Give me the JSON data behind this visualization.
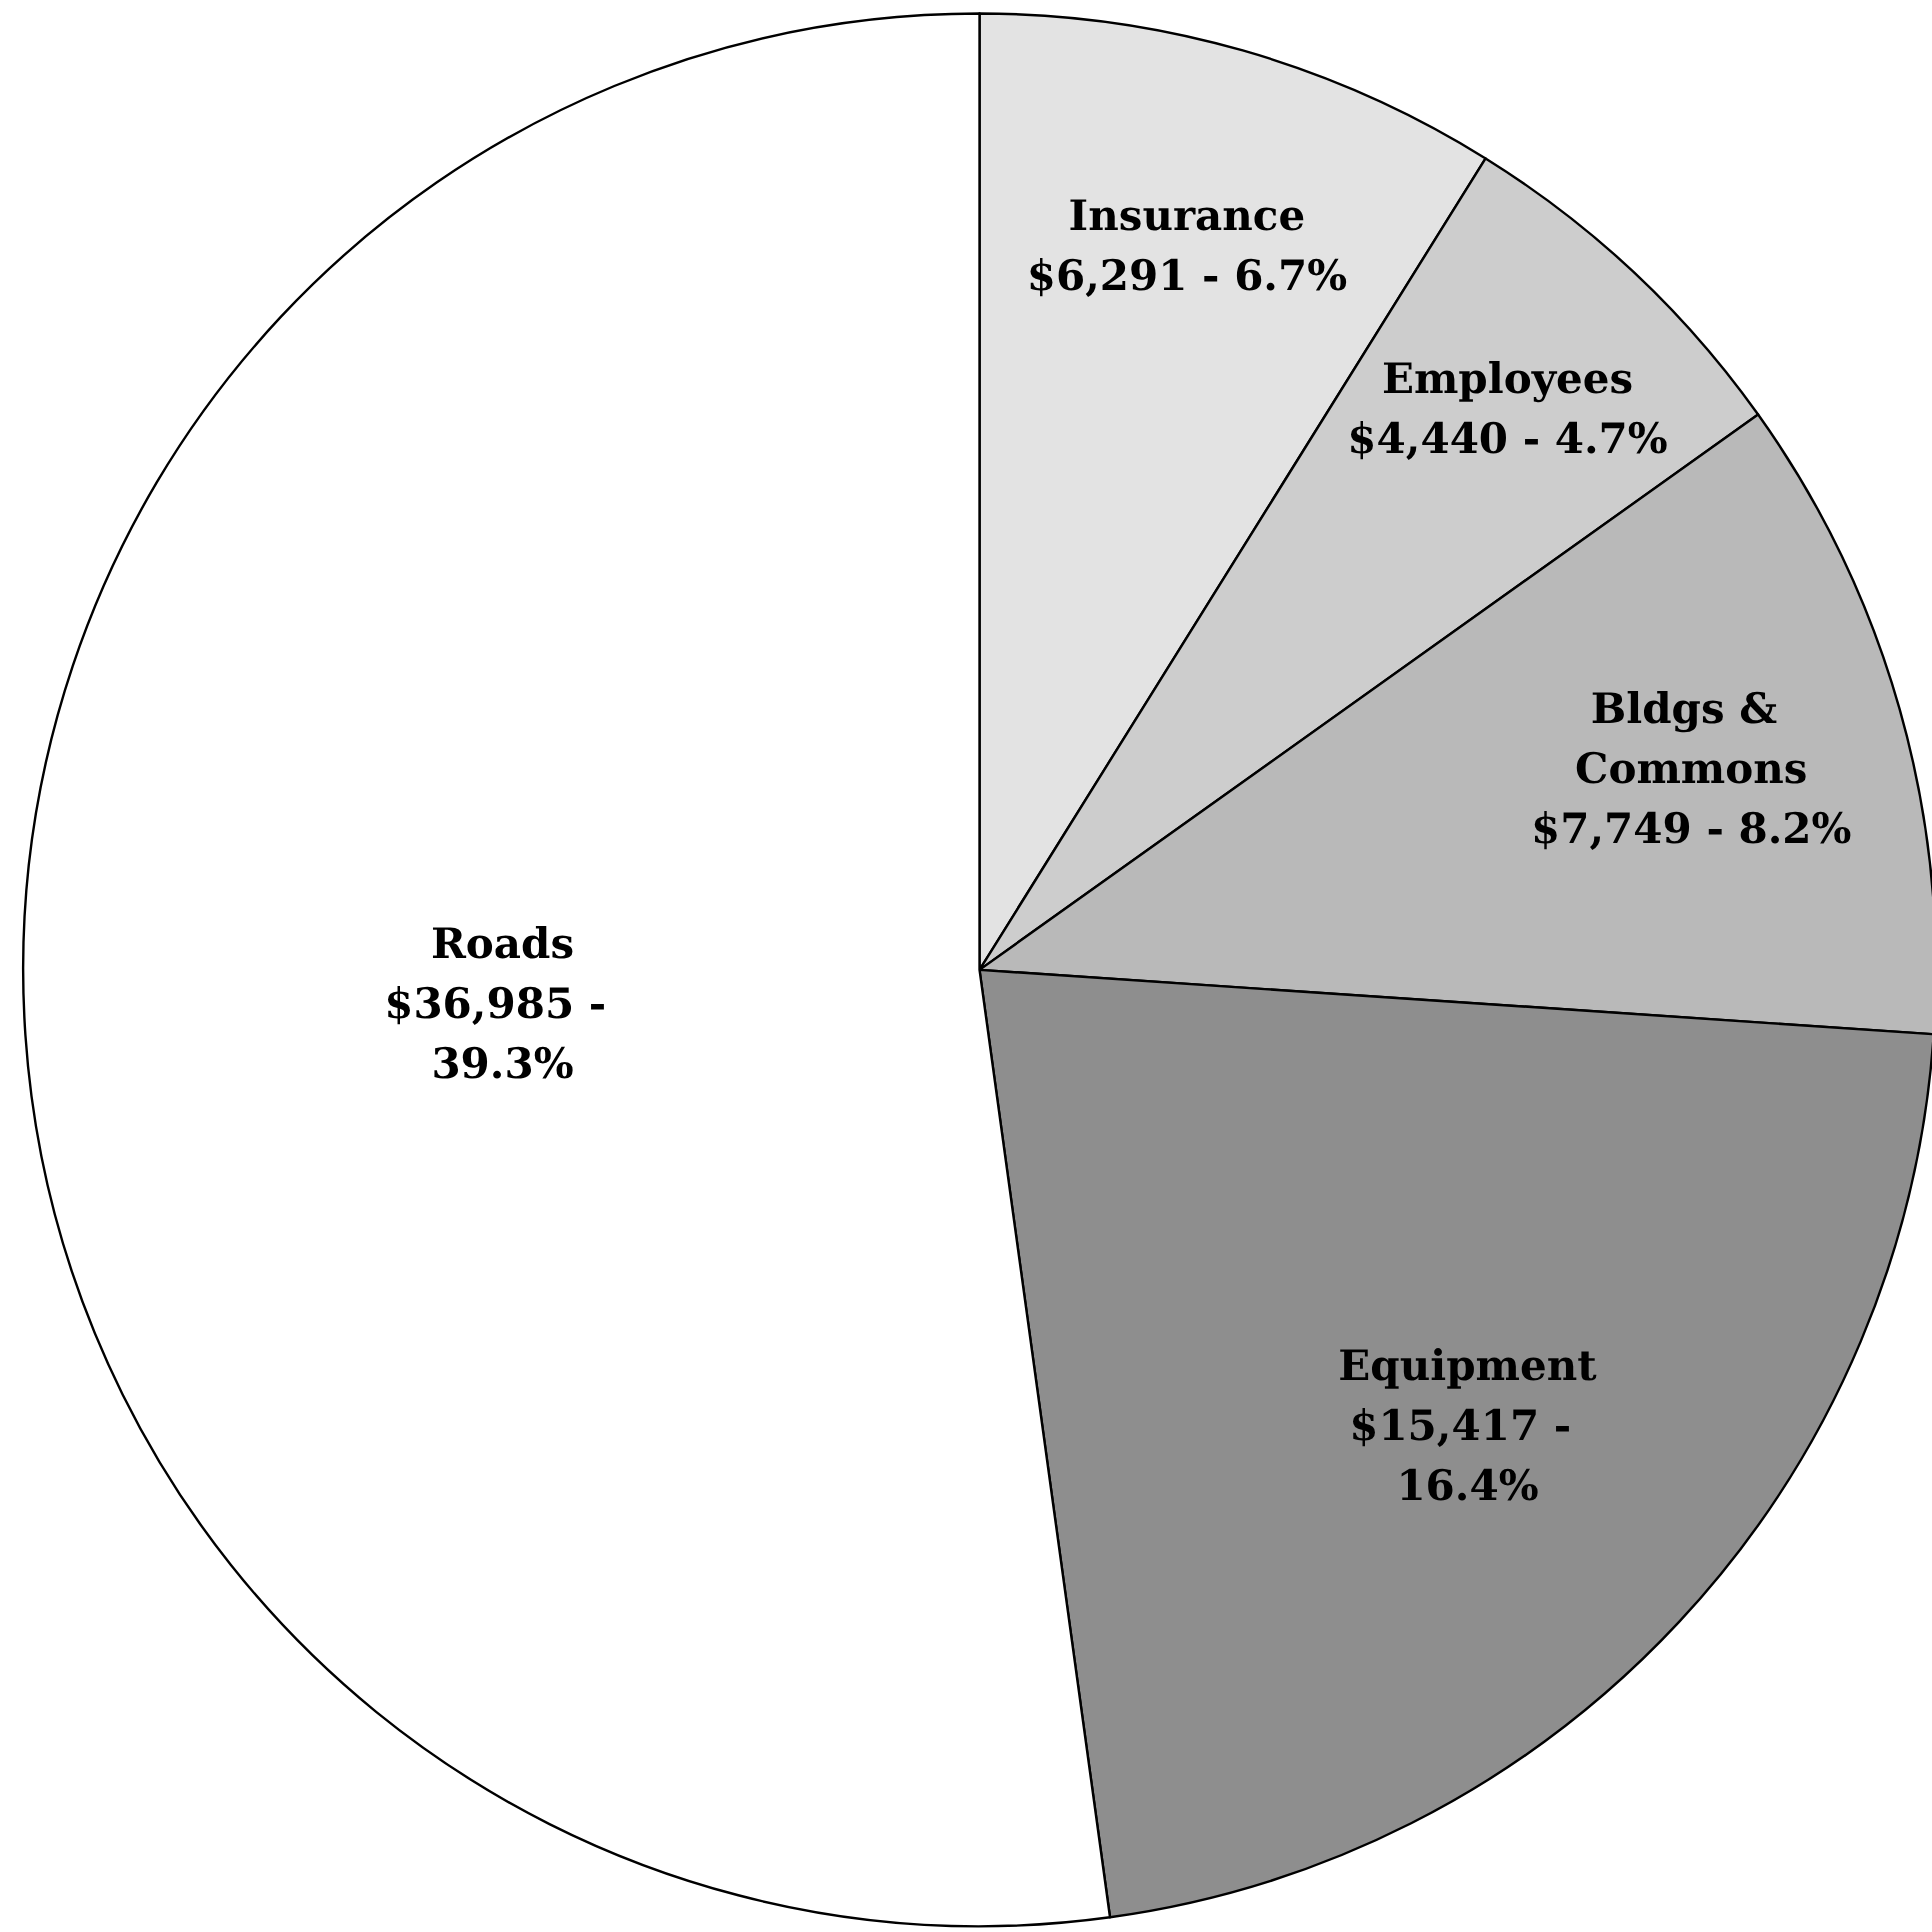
{
  "chart_data": {
    "type": "pie",
    "categories": [
      "Insurance",
      "Employees",
      "Bldgs & Commons",
      "Equipment",
      "Roads"
    ],
    "values": [
      6291,
      4440,
      7749,
      15417,
      36985
    ],
    "value_labels": [
      "$6,291 - 6.7%",
      "$4,440 - 4.7%",
      "$7,749 - 8.2%",
      "$15,417 - 16.4%",
      "$36,985 - 39.3%"
    ],
    "colors": [
      "#e3e3e3",
      "#cdcdcd",
      "#b9b9b9",
      "#8e8e8e",
      "#ffffff"
    ]
  }
}
